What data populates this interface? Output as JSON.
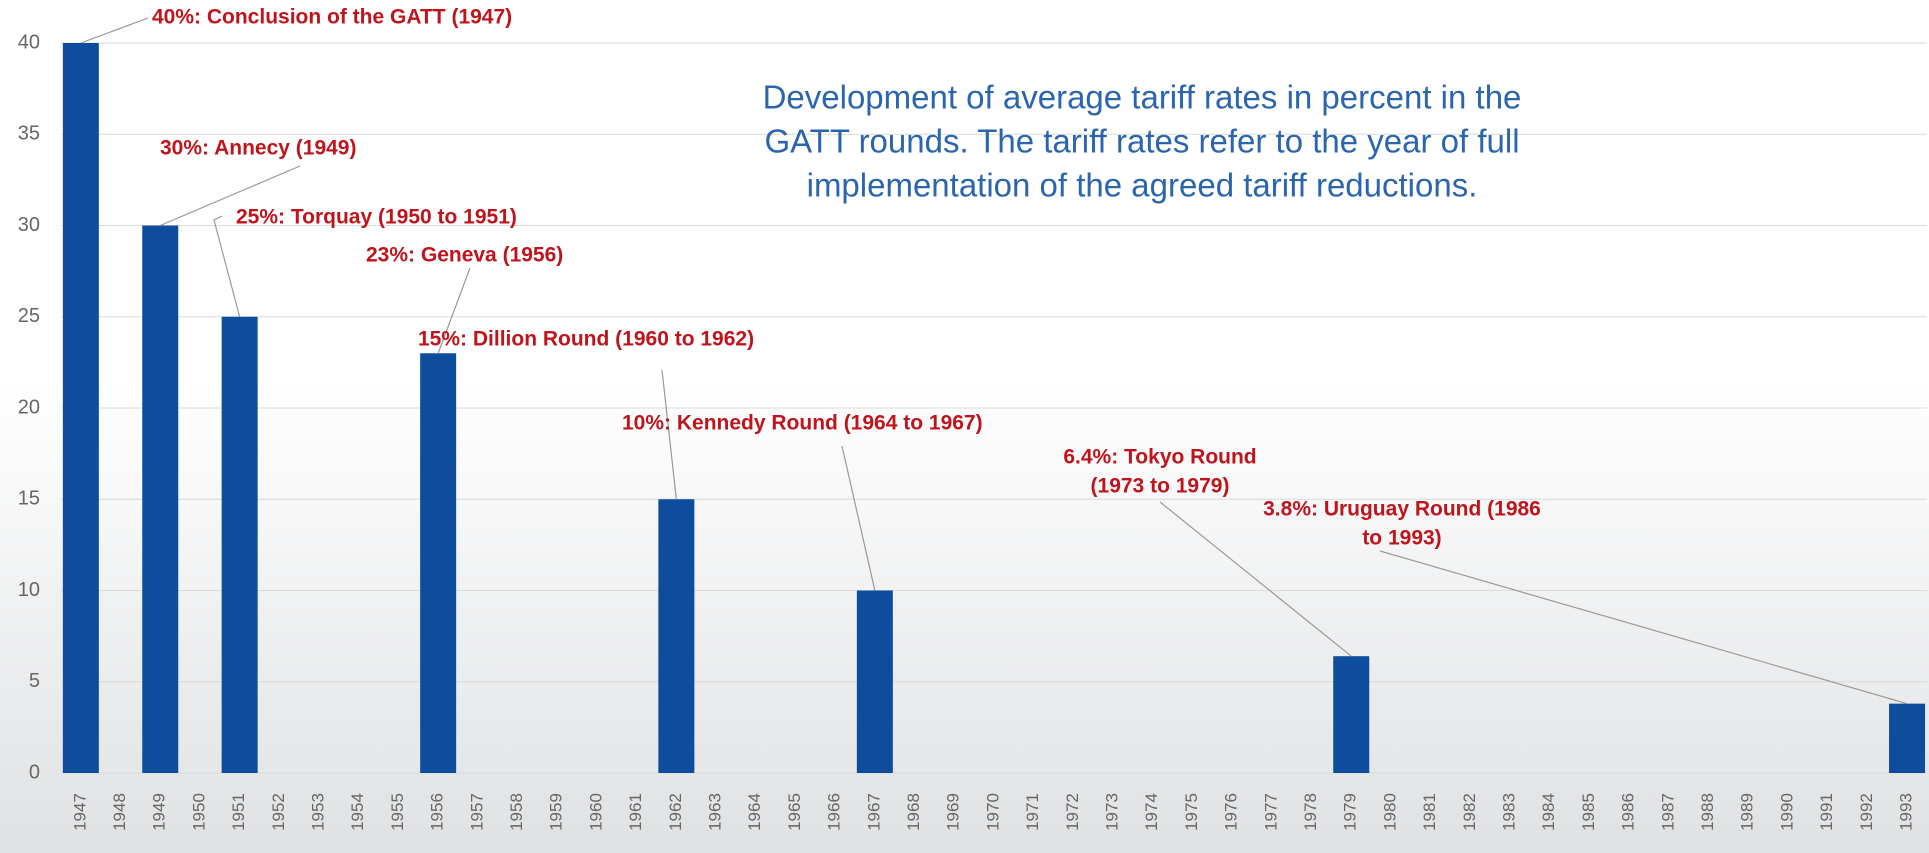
{
  "chart_data": {
    "type": "bar",
    "title": [
      "Development of average tariff rates in percent in the",
      "GATT rounds. The tariff rates refer to the year of full",
      "implementation of the agreed tariff reductions."
    ],
    "categories": [
      "1947",
      "1948",
      "1949",
      "1950",
      "1951",
      "1952",
      "1953",
      "1954",
      "1955",
      "1956",
      "1957",
      "1958",
      "1959",
      "1960",
      "1961",
      "1962",
      "1963",
      "1964",
      "1965",
      "1966",
      "1967",
      "1968",
      "1969",
      "1970",
      "1971",
      "1972",
      "1973",
      "1974",
      "1975",
      "1976",
      "1977",
      "1978",
      "1979",
      "1980",
      "1981",
      "1982",
      "1983",
      "1984",
      "1985",
      "1986",
      "1987",
      "1988",
      "1989",
      "1990",
      "1991",
      "1992",
      "1993"
    ],
    "values": [
      40,
      null,
      30,
      null,
      25,
      null,
      null,
      null,
      null,
      23,
      null,
      null,
      null,
      null,
      null,
      15,
      null,
      null,
      null,
      null,
      10,
      null,
      null,
      null,
      null,
      null,
      null,
      null,
      null,
      null,
      null,
      null,
      6.4,
      null,
      null,
      null,
      null,
      null,
      null,
      null,
      null,
      null,
      null,
      null,
      null,
      null,
      3.8
    ],
    "annotations": [
      [
        "40%: Conclusion of the GATT (1947)"
      ],
      [
        "30%: Annecy (1949)"
      ],
      [
        "25%: Torquay (1950 to 1951)"
      ],
      [
        "23%: Geneva (1956)"
      ],
      [
        "15%: Dillion Round (1960 to 1962)"
      ],
      [
        "10%: Kennedy Round (1964 to 1967)"
      ],
      [
        "6.4%: Tokyo Round",
        "(1973 to 1979)"
      ],
      [
        "3.8%: Uruguay Round (1986",
        "to 1993)"
      ]
    ],
    "color": "#0e4d9e",
    "ylim": [
      0,
      40
    ],
    "yticks": [
      0,
      5,
      10,
      15,
      20,
      25,
      30,
      35,
      40
    ],
    "grid": true
  }
}
